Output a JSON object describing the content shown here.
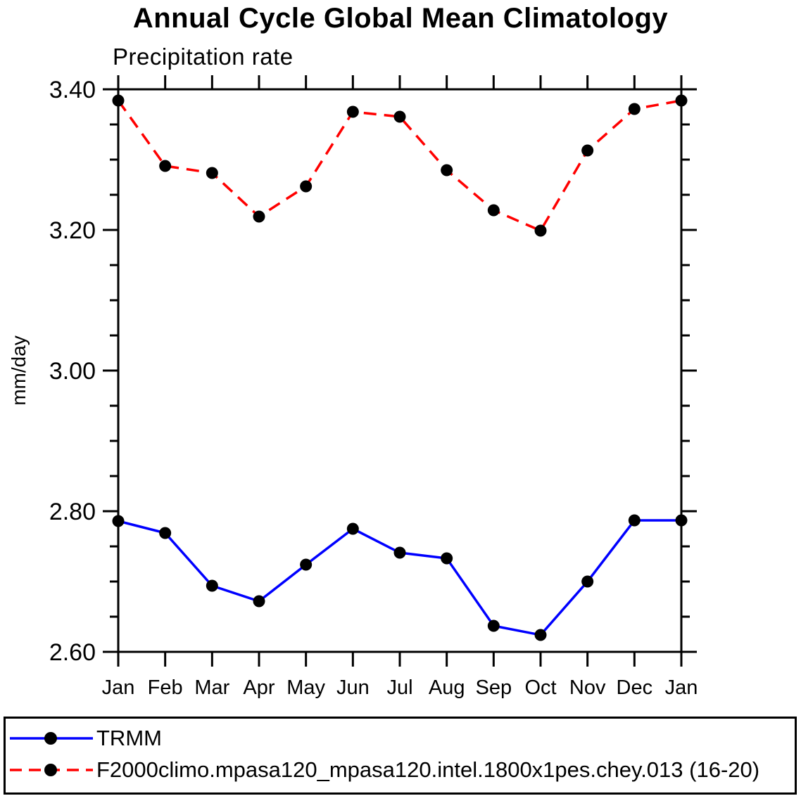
{
  "chart_data": {
    "type": "line",
    "title": "Annual Cycle Global Mean Climatology",
    "subtitle": "Precipitation rate",
    "ylabel": "mm/day",
    "xlabel": "",
    "categories": [
      "Jan",
      "Feb",
      "Mar",
      "Apr",
      "May",
      "Jun",
      "Jul",
      "Aug",
      "Sep",
      "Oct",
      "Nov",
      "Dec",
      "Jan"
    ],
    "ylim": [
      2.6,
      3.4
    ],
    "ytick_step": 0.2,
    "yminor_step": 0.05,
    "ytick_labels": [
      "2.60",
      "2.80",
      "3.00",
      "3.20",
      "3.40"
    ],
    "grid": false,
    "legend_position": "bottom",
    "axis_color": "#000000",
    "marker_shape": "filled-circle",
    "series": [
      {
        "name": "TRMM",
        "color": "#0000ff",
        "line_style": "solid",
        "marker_color": "#000000",
        "values": [
          2.786,
          2.769,
          2.694,
          2.672,
          2.724,
          2.775,
          2.741,
          2.733,
          2.637,
          2.624,
          2.7,
          2.787,
          2.787
        ]
      },
      {
        "name": "F2000climo.mpasa120_mpasa120.intel.1800x1pes.chey.013 (16-20)",
        "color": "#ff0000",
        "line_style": "dashed",
        "marker_color": "#000000",
        "values": [
          3.384,
          3.291,
          3.281,
          3.219,
          3.262,
          3.368,
          3.361,
          3.285,
          3.228,
          3.199,
          3.313,
          3.372,
          3.384
        ]
      }
    ]
  }
}
